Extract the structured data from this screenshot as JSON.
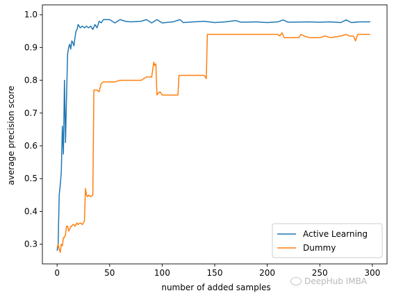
{
  "chart_data": {
    "type": "line",
    "title": "",
    "xlabel": "number of added samples",
    "ylabel": "average precision score",
    "xlim": [
      -14,
      314
    ],
    "ylim": [
      0.24,
      1.03
    ],
    "xticks": [
      0,
      50,
      100,
      150,
      200,
      250,
      300
    ],
    "yticks": [
      0.3,
      0.4,
      0.5,
      0.6,
      0.7,
      0.8,
      0.9,
      1.0
    ],
    "grid": false,
    "legend_position": "bottom-right",
    "series": [
      {
        "name": "Active Learning",
        "color": "#1f77b4",
        "points": [
          [
            0,
            0.28
          ],
          [
            1,
            0.3
          ],
          [
            2,
            0.45
          ],
          [
            3,
            0.48
          ],
          [
            4,
            0.52
          ],
          [
            5,
            0.66
          ],
          [
            6,
            0.575
          ],
          [
            7,
            0.8
          ],
          [
            8,
            0.61
          ],
          [
            9,
            0.75
          ],
          [
            10,
            0.88
          ],
          [
            11,
            0.9
          ],
          [
            12,
            0.91
          ],
          [
            13,
            0.895
          ],
          [
            14,
            0.92
          ],
          [
            15,
            0.915
          ],
          [
            16,
            0.905
          ],
          [
            17,
            0.93
          ],
          [
            18,
            0.95
          ],
          [
            19,
            0.955
          ],
          [
            20,
            0.97
          ],
          [
            22,
            0.96
          ],
          [
            24,
            0.965
          ],
          [
            26,
            0.96
          ],
          [
            28,
            0.965
          ],
          [
            30,
            0.96
          ],
          [
            32,
            0.965
          ],
          [
            34,
            0.955
          ],
          [
            36,
            0.97
          ],
          [
            38,
            0.96
          ],
          [
            40,
            0.98
          ],
          [
            42,
            0.975
          ],
          [
            44,
            0.985
          ],
          [
            50,
            0.985
          ],
          [
            55,
            0.975
          ],
          [
            60,
            0.985
          ],
          [
            65,
            0.98
          ],
          [
            70,
            0.978
          ],
          [
            80,
            0.98
          ],
          [
            85,
            0.985
          ],
          [
            90,
            0.975
          ],
          [
            95,
            0.985
          ],
          [
            100,
            0.975
          ],
          [
            110,
            0.978
          ],
          [
            117,
            0.985
          ],
          [
            120,
            0.976
          ],
          [
            130,
            0.978
          ],
          [
            140,
            0.98
          ],
          [
            150,
            0.976
          ],
          [
            160,
            0.978
          ],
          [
            170,
            0.982
          ],
          [
            175,
            0.977
          ],
          [
            190,
            0.978
          ],
          [
            200,
            0.976
          ],
          [
            210,
            0.978
          ],
          [
            215,
            0.984
          ],
          [
            220,
            0.977
          ],
          [
            240,
            0.978
          ],
          [
            250,
            0.977
          ],
          [
            260,
            0.978
          ],
          [
            270,
            0.976
          ],
          [
            275,
            0.984
          ],
          [
            280,
            0.976
          ],
          [
            288,
            0.978
          ],
          [
            298,
            0.978
          ]
        ]
      },
      {
        "name": "Dummy",
        "color": "#ff7f0e",
        "points": [
          [
            0,
            0.29
          ],
          [
            1,
            0.3
          ],
          [
            2,
            0.285
          ],
          [
            3,
            0.275
          ],
          [
            4,
            0.3
          ],
          [
            5,
            0.295
          ],
          [
            6,
            0.32
          ],
          [
            7,
            0.32
          ],
          [
            8,
            0.33
          ],
          [
            9,
            0.355
          ],
          [
            10,
            0.355
          ],
          [
            11,
            0.34
          ],
          [
            12,
            0.345
          ],
          [
            13,
            0.355
          ],
          [
            14,
            0.355
          ],
          [
            15,
            0.36
          ],
          [
            16,
            0.36
          ],
          [
            17,
            0.355
          ],
          [
            18,
            0.36
          ],
          [
            19,
            0.365
          ],
          [
            20,
            0.36
          ],
          [
            22,
            0.365
          ],
          [
            24,
            0.36
          ],
          [
            26,
            0.37
          ],
          [
            27,
            0.47
          ],
          [
            28,
            0.45
          ],
          [
            29,
            0.445
          ],
          [
            30,
            0.45
          ],
          [
            32,
            0.445
          ],
          [
            34,
            0.45
          ],
          [
            35,
            0.77
          ],
          [
            38,
            0.77
          ],
          [
            40,
            0.765
          ],
          [
            42,
            0.79
          ],
          [
            44,
            0.795
          ],
          [
            50,
            0.795
          ],
          [
            55,
            0.795
          ],
          [
            60,
            0.8
          ],
          [
            65,
            0.8
          ],
          [
            70,
            0.8
          ],
          [
            80,
            0.8
          ],
          [
            85,
            0.81
          ],
          [
            90,
            0.81
          ],
          [
            92,
            0.855
          ],
          [
            93,
            0.845
          ],
          [
            94,
            0.85
          ],
          [
            95,
            0.755
          ],
          [
            96,
            0.76
          ],
          [
            98,
            0.765
          ],
          [
            100,
            0.755
          ],
          [
            110,
            0.755
          ],
          [
            115,
            0.755
          ],
          [
            116,
            0.815
          ],
          [
            120,
            0.815
          ],
          [
            130,
            0.815
          ],
          [
            140,
            0.815
          ],
          [
            142,
            0.805
          ],
          [
            143,
            0.94
          ],
          [
            150,
            0.94
          ],
          [
            180,
            0.94
          ],
          [
            200,
            0.94
          ],
          [
            210,
            0.94
          ],
          [
            212,
            0.935
          ],
          [
            214,
            0.945
          ],
          [
            216,
            0.93
          ],
          [
            220,
            0.93
          ],
          [
            230,
            0.93
          ],
          [
            232,
            0.94
          ],
          [
            235,
            0.935
          ],
          [
            240,
            0.93
          ],
          [
            250,
            0.93
          ],
          [
            255,
            0.935
          ],
          [
            260,
            0.93
          ],
          [
            270,
            0.935
          ],
          [
            275,
            0.94
          ],
          [
            278,
            0.935
          ],
          [
            282,
            0.935
          ],
          [
            284,
            0.92
          ],
          [
            286,
            0.94
          ],
          [
            290,
            0.94
          ],
          [
            298,
            0.94
          ]
        ]
      }
    ]
  },
  "watermark": {
    "text": "DeepHub IMBA"
  }
}
